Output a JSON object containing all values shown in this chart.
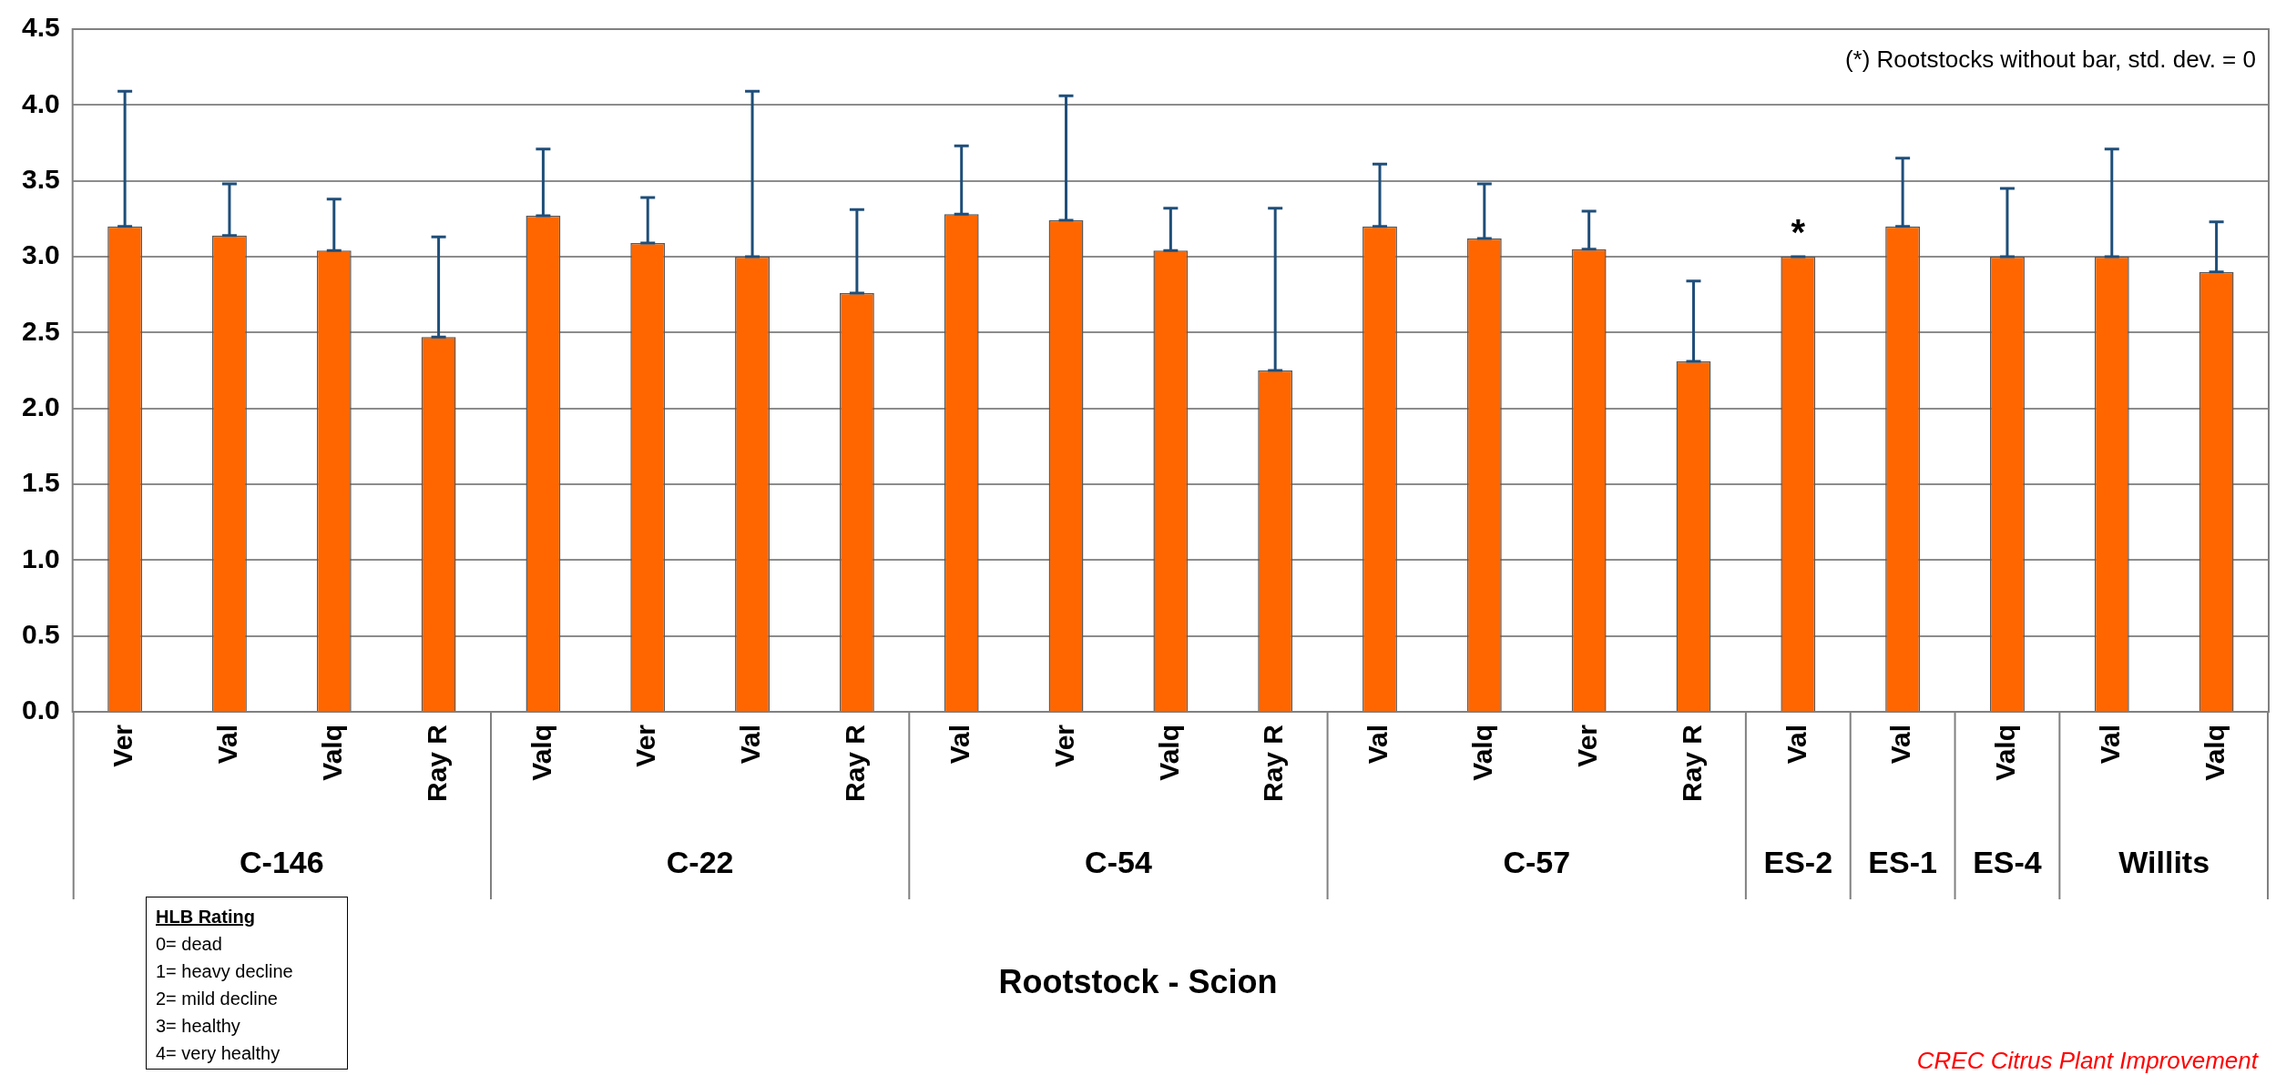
{
  "chart_data": {
    "type": "bar",
    "xlabel": "Rootstock - Scion",
    "categories": [
      "Ver",
      "Val",
      "Valq",
      "Ray R",
      "Valq",
      "Ver",
      "Val",
      "Ray R",
      "Val",
      "Ver",
      "Valq",
      "Ray R",
      "Val",
      "Valq",
      "Ver",
      "Ray R",
      "Val",
      "Val",
      "Valq",
      "Val",
      "Valq"
    ],
    "values": [
      3.2,
      3.14,
      3.04,
      2.47,
      3.27,
      3.09,
      3.0,
      2.76,
      3.28,
      3.24,
      3.04,
      2.25,
      3.2,
      3.12,
      3.05,
      2.31,
      3.0,
      3.2,
      3.0,
      3.0,
      2.9
    ],
    "errors": [
      [
        3.2,
        4.09
      ],
      [
        3.14,
        3.48
      ],
      [
        3.04,
        3.38
      ],
      [
        2.47,
        3.13
      ],
      [
        3.27,
        3.71
      ],
      [
        3.09,
        3.39
      ],
      [
        3.0,
        4.09
      ],
      [
        2.76,
        3.31
      ],
      [
        3.28,
        3.73
      ],
      [
        3.24,
        4.06
      ],
      [
        3.04,
        3.32
      ],
      [
        2.25,
        3.32
      ],
      [
        3.2,
        3.61
      ],
      [
        3.12,
        3.48
      ],
      [
        3.05,
        3.3
      ],
      [
        2.31,
        2.84
      ],
      [
        3.0,
        3.0
      ],
      [
        3.2,
        3.65
      ],
      [
        3.0,
        3.45
      ],
      [
        3.0,
        3.71
      ],
      [
        2.9,
        3.23
      ]
    ],
    "value_labels": [
      null,
      null,
      null,
      null,
      null,
      null,
      null,
      null,
      null,
      null,
      null,
      null,
      null,
      null,
      null,
      null,
      "*",
      null,
      null,
      null,
      null
    ],
    "color": "#ff6600",
    "ylim": [
      0,
      4.5
    ],
    "yticks": [
      {
        "value": 0,
        "label": "0.0"
      },
      {
        "value": 0.5,
        "label": "0.5"
      },
      {
        "value": 1,
        "label": "1.0"
      },
      {
        "value": 1.5,
        "label": "1.5"
      },
      {
        "value": 2,
        "label": "2.0"
      },
      {
        "value": 2.5,
        "label": "2.5"
      },
      {
        "value": 3,
        "label": "3.0"
      },
      {
        "value": 3.5,
        "label": "3.5"
      },
      {
        "value": 4,
        "label": "4.0"
      },
      {
        "value": 4.5,
        "label": "4.5"
      }
    ],
    "grid": "y",
    "legend": false,
    "annotations": [
      "C-146",
      "C-22",
      "C-54",
      "C-57",
      "ES-2",
      "ES-1",
      "ES-4",
      "Willits",
      "(*) Rootstocks without bar, std. dev. = 0",
      "HLB Rating",
      "0= dead",
      "1= heavy decline",
      "2= mild decline",
      "3= healthy",
      "4= very healthy",
      "CREC Citrus Plant Improvement"
    ]
  }
}
